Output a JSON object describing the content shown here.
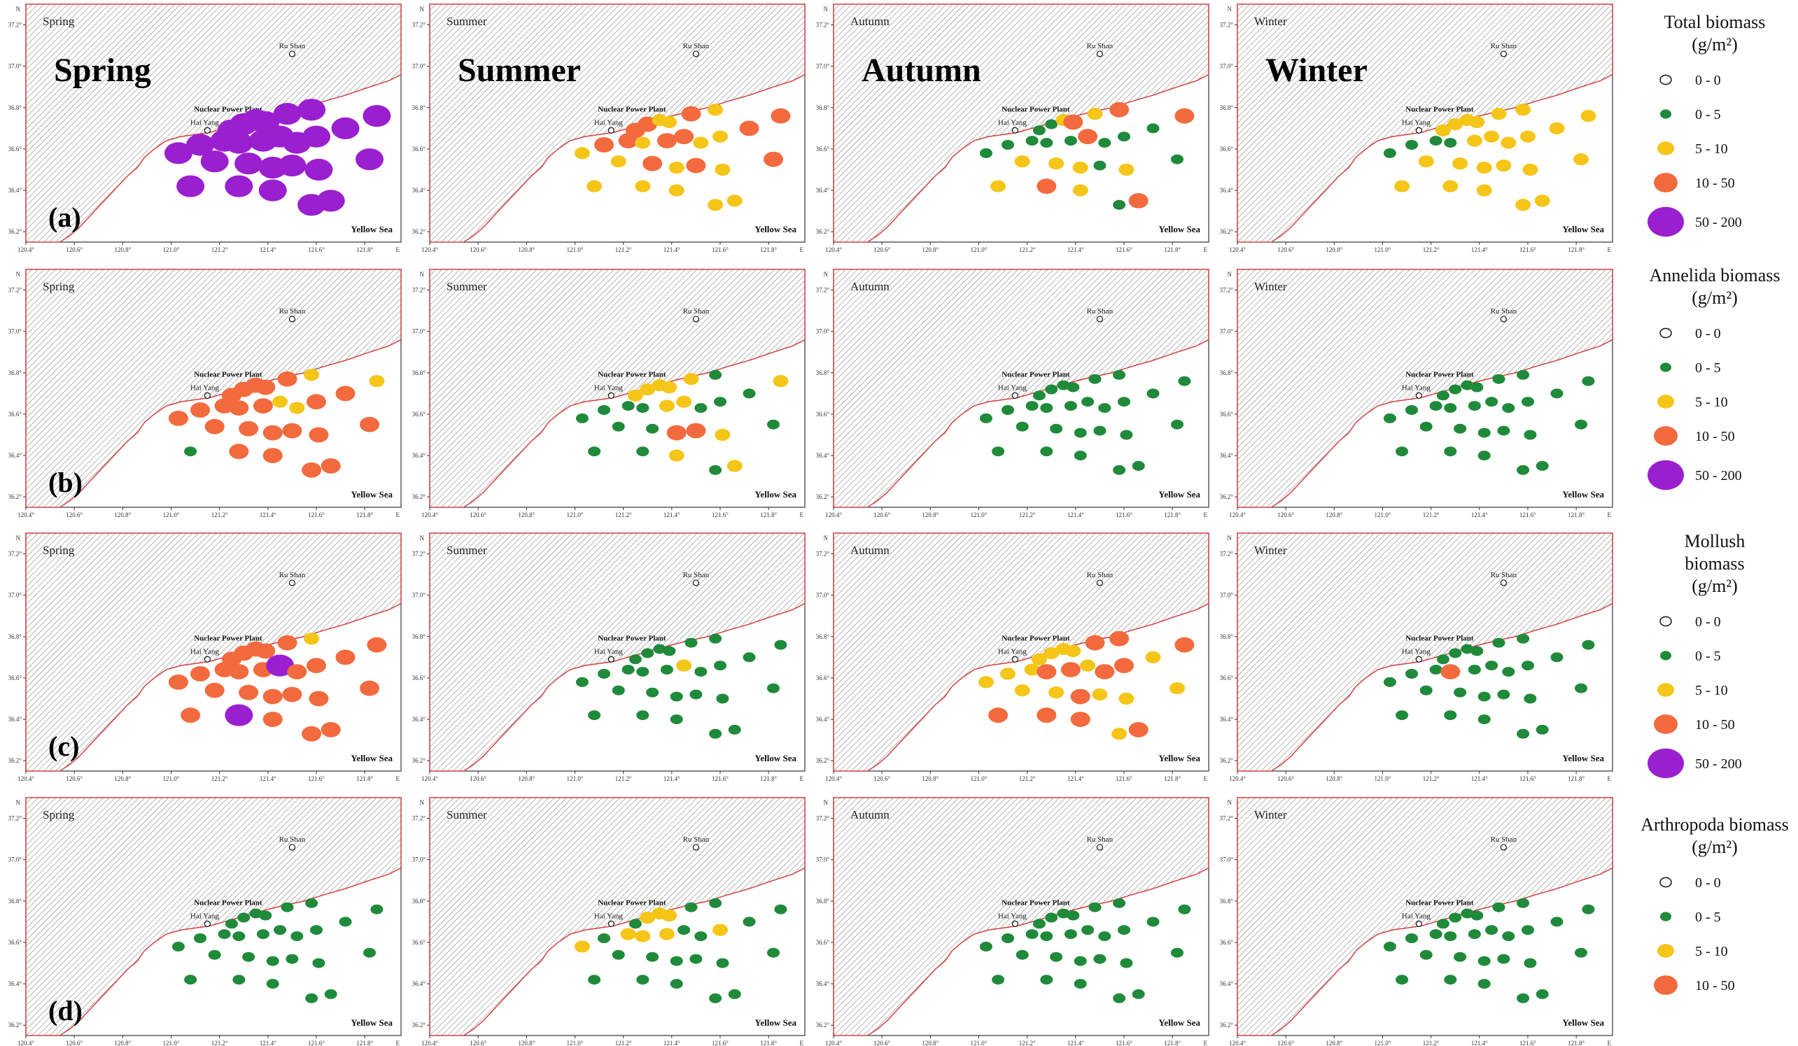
{
  "map_text": {
    "place_rushan": "Ru Shan",
    "place_haiyang": "Hai Yang",
    "place_npp": "Nuclear Power Plant",
    "sea_label": "Yellow Sea",
    "north_label": "N",
    "east_label": "E",
    "lon_ticks": [
      "120.4°",
      "120.6°",
      "120.8°",
      "121.0°",
      "121.2°",
      "121.4°",
      "121.6°",
      "121.8°"
    ],
    "lat_ticks": [
      "37.2°",
      "37.0°",
      "36.8°",
      "36.6°",
      "36.4°",
      "36.2°"
    ]
  },
  "seasons": [
    "Spring",
    "Summer",
    "Autumn",
    "Winter"
  ],
  "rows": [
    {
      "letter": "(a)",
      "legend_title": "Total biomass (g/m²)",
      "legend_title_lines": [
        "Total biomass",
        "(g/m²)"
      ]
    },
    {
      "letter": "(b)",
      "legend_title": "Annelida biomass (g/m²)",
      "legend_title_lines": [
        "Annelida biomass",
        "(g/m²)"
      ]
    },
    {
      "letter": "(c)",
      "legend_title": "Mollush biomass (g/m²)",
      "legend_title_lines": [
        "Mollush",
        "biomass",
        "(g/m²)"
      ]
    },
    {
      "letter": "(d)",
      "legend_title": "Arthropoda biomass (g/m²)",
      "legend_title_lines": [
        "Arthropoda biomass",
        "(g/m²)"
      ]
    }
  ],
  "legend_classes": [
    {
      "label": "0 - 0",
      "color": "#ffffff"
    },
    {
      "label": "0 - 5",
      "color": "#1f8a3a"
    },
    {
      "label": "5 - 10",
      "color": "#f5c518"
    },
    {
      "label": "10 - 50",
      "color": "#f26a3d"
    },
    {
      "label": "50 - 200",
      "color": "#9a1fd0"
    }
  ],
  "legend_classes_per_row": [
    5,
    5,
    5,
    4
  ],
  "stations": [
    {
      "lon": 121.08,
      "lat": 36.42
    },
    {
      "lon": 121.03,
      "lat": 36.58
    },
    {
      "lon": 121.12,
      "lat": 36.62
    },
    {
      "lon": 121.25,
      "lat": 36.69
    },
    {
      "lon": 121.3,
      "lat": 36.72
    },
    {
      "lon": 121.35,
      "lat": 36.74
    },
    {
      "lon": 121.39,
      "lat": 36.73
    },
    {
      "lon": 121.48,
      "lat": 36.77
    },
    {
      "lon": 121.58,
      "lat": 36.79
    },
    {
      "lon": 121.85,
      "lat": 36.76
    },
    {
      "lon": 121.22,
      "lat": 36.64
    },
    {
      "lon": 121.28,
      "lat": 36.63
    },
    {
      "lon": 121.38,
      "lat": 36.64
    },
    {
      "lon": 121.45,
      "lat": 36.66
    },
    {
      "lon": 121.52,
      "lat": 36.63
    },
    {
      "lon": 121.6,
      "lat": 36.66
    },
    {
      "lon": 121.72,
      "lat": 36.7
    },
    {
      "lon": 121.18,
      "lat": 36.54
    },
    {
      "lon": 121.32,
      "lat": 36.53
    },
    {
      "lon": 121.42,
      "lat": 36.51
    },
    {
      "lon": 121.5,
      "lat": 36.52
    },
    {
      "lon": 121.61,
      "lat": 36.5
    },
    {
      "lon": 121.82,
      "lat": 36.55
    },
    {
      "lon": 121.28,
      "lat": 36.42
    },
    {
      "lon": 121.42,
      "lat": 36.4
    },
    {
      "lon": 121.58,
      "lat": 36.33
    },
    {
      "lon": 121.66,
      "lat": 36.35
    }
  ],
  "map_classes": [
    [
      [
        4,
        4,
        4,
        4,
        4,
        4,
        4,
        4,
        4,
        4,
        4,
        4,
        4,
        4,
        4,
        4,
        4,
        4,
        4,
        4,
        4,
        4,
        4,
        4,
        4,
        4,
        4
      ],
      [
        2,
        2,
        3,
        3,
        3,
        2,
        2,
        3,
        2,
        3,
        3,
        2,
        3,
        3,
        2,
        2,
        3,
        2,
        3,
        2,
        3,
        2,
        3,
        2,
        2,
        2,
        2
      ],
      [
        2,
        1,
        1,
        1,
        1,
        2,
        3,
        2,
        3,
        3,
        1,
        1,
        1,
        3,
        1,
        1,
        1,
        2,
        2,
        2,
        1,
        2,
        1,
        3,
        2,
        1,
        3
      ],
      [
        2,
        1,
        1,
        2,
        2,
        2,
        2,
        2,
        2,
        2,
        1,
        1,
        2,
        2,
        2,
        2,
        2,
        2,
        2,
        2,
        2,
        2,
        2,
        2,
        2,
        2,
        2
      ]
    ],
    [
      [
        1,
        3,
        3,
        3,
        3,
        3,
        3,
        3,
        2,
        2,
        3,
        3,
        3,
        2,
        2,
        3,
        3,
        3,
        3,
        3,
        3,
        3,
        3,
        3,
        3,
        3,
        3
      ],
      [
        1,
        1,
        1,
        2,
        2,
        2,
        2,
        2,
        1,
        2,
        1,
        1,
        2,
        2,
        1,
        1,
        1,
        1,
        1,
        3,
        3,
        2,
        1,
        1,
        2,
        1,
        2
      ],
      [
        1,
        1,
        1,
        1,
        1,
        1,
        1,
        1,
        1,
        1,
        1,
        1,
        1,
        1,
        1,
        1,
        1,
        1,
        1,
        1,
        1,
        1,
        1,
        1,
        1,
        1,
        1
      ],
      [
        1,
        1,
        1,
        1,
        1,
        1,
        1,
        1,
        1,
        1,
        1,
        1,
        1,
        1,
        1,
        1,
        1,
        1,
        1,
        1,
        1,
        1,
        1,
        1,
        1,
        1,
        1
      ]
    ],
    [
      [
        3,
        3,
        3,
        3,
        3,
        3,
        3,
        3,
        2,
        3,
        3,
        3,
        3,
        4,
        3,
        3,
        3,
        3,
        3,
        3,
        3,
        3,
        3,
        4,
        3,
        3,
        3
      ],
      [
        1,
        1,
        1,
        1,
        1,
        1,
        1,
        1,
        1,
        1,
        1,
        1,
        1,
        2,
        1,
        1,
        1,
        1,
        1,
        1,
        1,
        1,
        1,
        1,
        1,
        1,
        1
      ],
      [
        3,
        2,
        2,
        2,
        2,
        2,
        2,
        3,
        3,
        3,
        2,
        3,
        3,
        2,
        3,
        3,
        2,
        2,
        2,
        3,
        2,
        2,
        2,
        3,
        3,
        2,
        3
      ],
      [
        1,
        1,
        1,
        1,
        1,
        1,
        1,
        1,
        1,
        1,
        1,
        3,
        1,
        1,
        1,
        1,
        1,
        1,
        1,
        1,
        1,
        1,
        1,
        1,
        1,
        1,
        1
      ]
    ],
    [
      [
        1,
        1,
        1,
        1,
        1,
        1,
        1,
        1,
        1,
        1,
        1,
        1,
        1,
        1,
        1,
        1,
        1,
        1,
        1,
        1,
        1,
        1,
        1,
        1,
        1,
        1,
        1
      ],
      [
        1,
        2,
        1,
        1,
        2,
        2,
        2,
        1,
        1,
        1,
        2,
        2,
        2,
        1,
        1,
        2,
        1,
        1,
        1,
        1,
        1,
        1,
        1,
        1,
        1,
        1,
        1
      ],
      [
        1,
        1,
        1,
        1,
        1,
        1,
        1,
        1,
        1,
        1,
        1,
        1,
        1,
        1,
        1,
        1,
        1,
        1,
        1,
        1,
        1,
        1,
        1,
        1,
        1,
        1,
        1
      ],
      [
        1,
        1,
        1,
        1,
        1,
        1,
        1,
        1,
        1,
        1,
        1,
        1,
        1,
        1,
        1,
        1,
        1,
        1,
        1,
        1,
        1,
        1,
        1,
        1,
        1,
        1,
        1
      ]
    ]
  ]
}
